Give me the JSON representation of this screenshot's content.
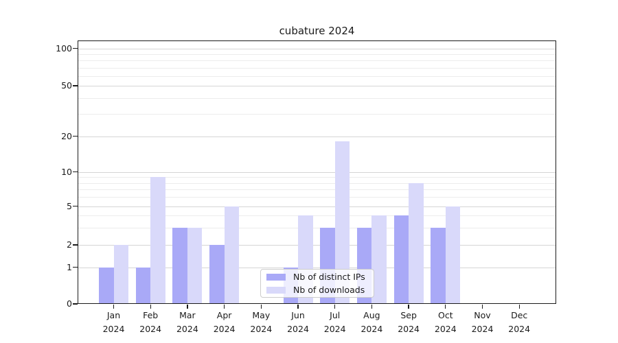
{
  "chart_data": {
    "type": "bar",
    "title": "cubature 2024",
    "categories": [
      "Jan",
      "Feb",
      "Mar",
      "Apr",
      "May",
      "Jun",
      "Jul",
      "Aug",
      "Sep",
      "Oct",
      "Nov",
      "Dec"
    ],
    "category_year": "2024",
    "series": [
      {
        "name": "Nb of distinct IPs",
        "color": "#a9a9f7",
        "values": [
          1,
          1,
          3,
          2,
          0,
          1,
          3,
          3,
          4,
          3,
          0,
          0
        ]
      },
      {
        "name": "Nb of downloads",
        "color": "#d9d9fa",
        "values": [
          2,
          9,
          3,
          5,
          0,
          4,
          18,
          4,
          8,
          5,
          0,
          0
        ]
      }
    ],
    "xlabel": "",
    "ylabel": "",
    "yscale": "symlog-like",
    "y_major_ticks": [
      0,
      1,
      2,
      5,
      10,
      20,
      50,
      100
    ],
    "y_minor_gridlines": [
      3,
      4,
      6,
      7,
      8,
      9,
      30,
      40,
      60,
      70,
      80,
      90
    ],
    "ylim": [
      0,
      115
    ],
    "grid": "horizontal, major and minor",
    "legend": {
      "position": "lower center",
      "entries": [
        "Nb of distinct IPs",
        "Nb of downloads"
      ]
    }
  },
  "colors": {
    "distinct_ips": "#a9a9f7",
    "downloads": "#d9d9fa",
    "major_grid": "#d5d5d5",
    "minor_grid": "#ececec",
    "spine": "#1a1a1a",
    "text": "#1a1a1a",
    "legend_border": "#cccccc",
    "background": "#ffffff"
  }
}
